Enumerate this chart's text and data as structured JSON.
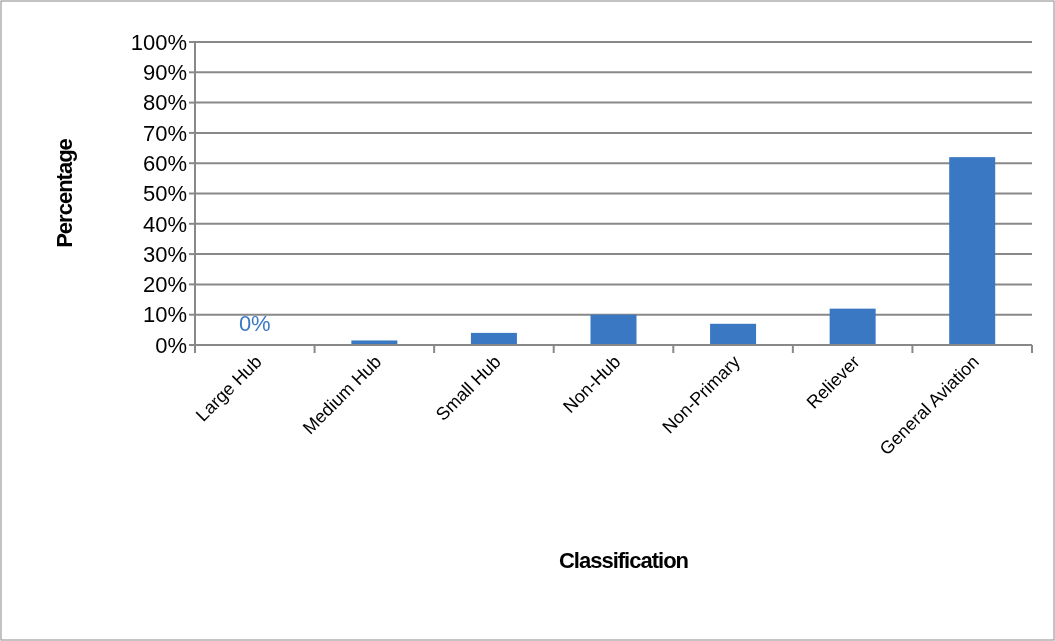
{
  "chart_data": {
    "type": "bar",
    "xlabel": "Classification",
    "ylabel": "Percentage",
    "categories": [
      "Large Hub",
      "Medium Hub",
      "Small Hub",
      "Non-Hub",
      "Non-Primary",
      "Reliever",
      "General Aviation"
    ],
    "values": [
      0,
      1.5,
      4,
      10,
      7,
      12,
      62
    ],
    "value_labels": [
      "0%",
      null,
      null,
      null,
      null,
      null,
      null
    ],
    "color": "#3a78c4",
    "ylim": [
      0,
      100
    ],
    "yticks": [
      {
        "value": 0,
        "label": "0%"
      },
      {
        "value": 10,
        "label": "10%"
      },
      {
        "value": 20,
        "label": "20%"
      },
      {
        "value": 30,
        "label": "30%"
      },
      {
        "value": 40,
        "label": "40%"
      },
      {
        "value": 50,
        "label": "50%"
      },
      {
        "value": 60,
        "label": "60%"
      },
      {
        "value": 70,
        "label": "70%"
      },
      {
        "value": 80,
        "label": "80%"
      },
      {
        "value": 90,
        "label": "90%"
      },
      {
        "value": 100,
        "label": "100%"
      }
    ],
    "grid": "y"
  }
}
